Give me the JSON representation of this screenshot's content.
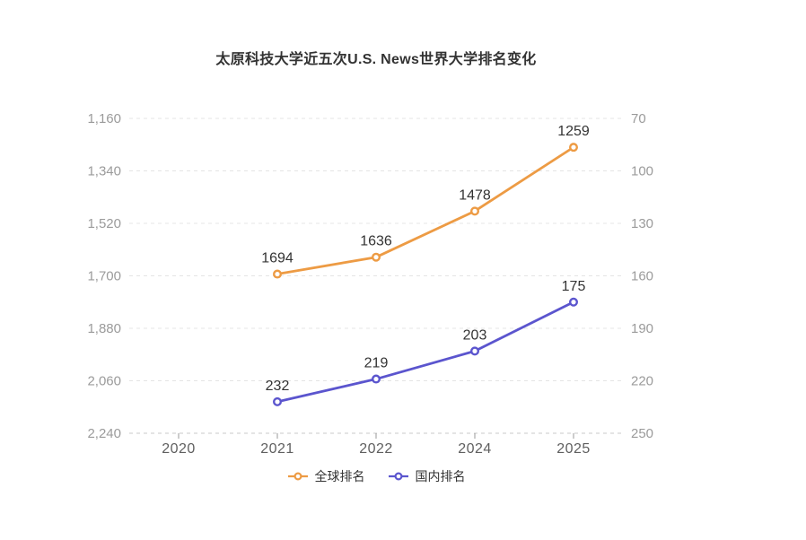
{
  "title": "太原科技大学近五次U.S. News世界大学排名变化",
  "colors": {
    "global_series": "#ED9B44",
    "domestic_series": "#5B55CE",
    "gridline": "#e4e4e4",
    "axis_line": "#c9c9c9",
    "y_tick_label": "#9b9b9b",
    "x_tick_label": "#5f5f5f",
    "data_label": "#333333",
    "background": "#ffffff"
  },
  "chart_data": {
    "type": "line",
    "title": "太原科技大学近五次U.S. News世界大学排名变化",
    "categories": [
      "2020",
      "2021",
      "2022",
      "2024",
      "2025"
    ],
    "series": [
      {
        "name": "全球排名",
        "color": "#ED9B44",
        "axis": "left",
        "points": [
          {
            "x": "2021",
            "y": 1694
          },
          {
            "x": "2022",
            "y": 1636
          },
          {
            "x": "2024",
            "y": 1478
          },
          {
            "x": "2025",
            "y": 1259
          }
        ]
      },
      {
        "name": "国内排名",
        "color": "#5B55CE",
        "axis": "right",
        "points": [
          {
            "x": "2021",
            "y": 232
          },
          {
            "x": "2022",
            "y": 219
          },
          {
            "x": "2024",
            "y": 203
          },
          {
            "x": "2025",
            "y": 175
          }
        ]
      }
    ],
    "left_axis": {
      "min": 1160,
      "max": 2240,
      "min_at_top": true,
      "tick_labels": [
        "1,160",
        "1,340",
        "1,520",
        "1,700",
        "1,880",
        "2,060",
        "2,240"
      ]
    },
    "right_axis": {
      "min": 70,
      "max": 250,
      "min_at_top": true,
      "tick_labels": [
        "70",
        "100",
        "130",
        "160",
        "190",
        "220",
        "250"
      ]
    },
    "grid": true,
    "grid_style": "dashed",
    "legend_position": "bottom",
    "legend": [
      "全球排名",
      "国内排名"
    ]
  }
}
